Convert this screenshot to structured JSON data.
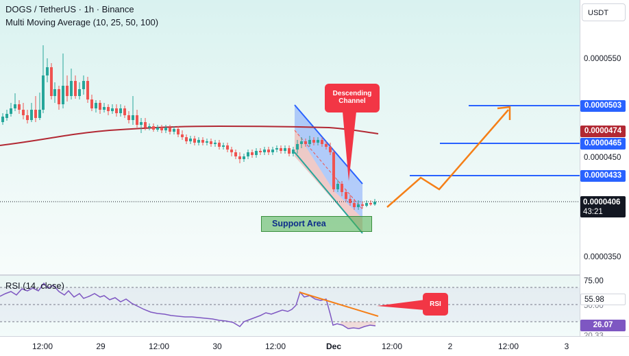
{
  "header": {
    "symbol_line": "DOGS / TetherUS · 1h · Binance",
    "indicator_line": "Multi Moving Average (10, 25, 50, 100)"
  },
  "rsi_legend": "RSI (14, close)",
  "currency_button": "USDT",
  "price_axis": {
    "ticks": [
      "0.0000550",
      "0.0000450",
      "0.0000350"
    ],
    "tags": {
      "tag_503": {
        "label": "0.0000503",
        "color": "#2962ff"
      },
      "tag_474": {
        "label": "0.0000474",
        "color": "#b22833"
      },
      "tag_465": {
        "label": "0.0000465",
        "color": "#2962ff"
      },
      "tag_433": {
        "label": "0.0000433",
        "color": "#2962ff"
      },
      "last_price": {
        "label": "0.0000406",
        "countdown": "43:21",
        "color": "#131722"
      }
    }
  },
  "rsi_axis": {
    "upper": "75.00",
    "value": "55.98",
    "mid_partial": "50.00",
    "lower": "26.07",
    "bottom_partial": "20.33"
  },
  "time_axis": [
    "12:00",
    "29",
    "12:00",
    "30",
    "12:00",
    "Dec",
    "12:00",
    "2",
    "12:00",
    "3"
  ],
  "annotations": {
    "descending_channel": "Descending Channel",
    "support_area": "Support Area",
    "rsi_callout": "RSI"
  },
  "colors": {
    "bull": "#26a69a",
    "bear": "#ef5350",
    "ma": "#b22833",
    "channel": "#2962ff",
    "arrow": "#f57f17",
    "rsi_line": "#7e57c2"
  }
}
